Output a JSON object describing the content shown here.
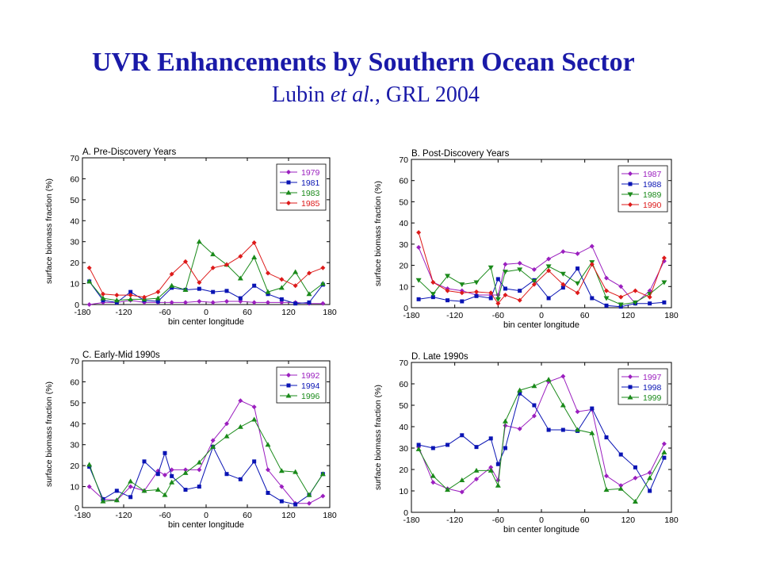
{
  "title": {
    "main": "UVR Enhancements by Southern Ocean Sector",
    "author": "Lubin",
    "etal": "et al.",
    "citation": ", GRL 2004"
  },
  "colors": {
    "purple": "#9b1fbf",
    "blue": "#0a14b4",
    "green": "#1a8a1a",
    "red": "#dd1a1a"
  },
  "chart_data": [
    {
      "type": "line",
      "title": "A. Pre-Discovery Years",
      "xlabel": "bin center longitude",
      "ylabel": "surface biomass fraction (%)",
      "xlim": [
        -180,
        180
      ],
      "ylim": [
        0,
        70
      ],
      "xticks": [
        -180,
        -120,
        -60,
        0,
        60,
        120,
        180
      ],
      "yticks": [
        0,
        10,
        20,
        30,
        40,
        50,
        60,
        70
      ],
      "legend": "top-right",
      "x": [
        -170,
        -150,
        -130,
        -110,
        -90,
        -70,
        -50,
        -30,
        -10,
        10,
        30,
        50,
        70,
        90,
        110,
        130,
        150,
        170
      ],
      "series": [
        {
          "name": "1979",
          "color": "#9b1fbf",
          "marker": "diamond",
          "values": [
            0,
            1,
            1,
            2,
            1,
            1,
            1,
            1,
            1.5,
            1,
            1.5,
            1.5,
            1,
            1,
            1,
            1,
            0.5,
            0.5
          ]
        },
        {
          "name": "1981",
          "color": "#0a14b4",
          "marker": "square",
          "values": [
            11,
            2,
            1,
            6,
            2,
            1.5,
            8,
            7,
            7.5,
            6,
            6.5,
            3,
            9,
            5,
            2.5,
            0.5,
            1,
            9.5
          ]
        },
        {
          "name": "1983",
          "color": "#1a8a1a",
          "marker": "triangle-up",
          "values": [
            11,
            3,
            2,
            2.5,
            2.5,
            3,
            9,
            7,
            30,
            24,
            19,
            12.5,
            22.5,
            6,
            8,
            15.5,
            5,
            10
          ]
        },
        {
          "name": "1985",
          "color": "#dd1a1a",
          "marker": "diamond",
          "values": [
            17.5,
            5,
            4.5,
            4.5,
            3.5,
            6,
            14.5,
            20.5,
            10.5,
            17.5,
            19,
            23,
            29.5,
            15,
            12,
            9,
            15,
            17.5
          ]
        }
      ]
    },
    {
      "type": "line",
      "title": "B. Post-Discovery Years",
      "xlabel": "bin center longitude",
      "ylabel": "surface biomass fraction (%)",
      "xlim": [
        -180,
        180
      ],
      "ylim": [
        0,
        70
      ],
      "xticks": [
        -180,
        -120,
        -60,
        0,
        60,
        120,
        180
      ],
      "yticks": [
        0,
        10,
        20,
        30,
        40,
        50,
        60,
        70
      ],
      "legend": "top-right",
      "x": [
        -170,
        -150,
        -130,
        -110,
        -90,
        -70,
        -60,
        -50,
        -30,
        -10,
        10,
        30,
        50,
        70,
        90,
        110,
        130,
        150,
        170
      ],
      "series": [
        {
          "name": "1987",
          "color": "#9b1fbf",
          "marker": "diamond",
          "values": [
            28.5,
            12,
            9,
            8,
            6,
            6,
            6,
            20.5,
            21,
            18,
            23,
            26.5,
            25.5,
            29,
            14,
            10,
            2,
            8,
            22
          ]
        },
        {
          "name": "1988",
          "color": "#0a14b4",
          "marker": "square",
          "values": [
            4,
            5,
            3.5,
            3,
            5.5,
            4.5,
            13.5,
            9,
            8,
            13,
            4.5,
            9.5,
            18.5,
            4.5,
            1,
            0.5,
            2,
            2,
            2.5
          ]
        },
        {
          "name": "1989",
          "color": "#1a8a1a",
          "marker": "triangle-down",
          "values": [
            13,
            6.5,
            15,
            11,
            12,
            19,
            4,
            17,
            18,
            12.5,
            19.5,
            16,
            11.5,
            21.5,
            4.5,
            1.5,
            2.5,
            6.5,
            12
          ]
        },
        {
          "name": "1990",
          "color": "#dd1a1a",
          "marker": "diamond",
          "values": [
            35.5,
            12,
            8,
            7,
            7.5,
            7,
            2,
            6,
            3.5,
            11,
            17.5,
            11,
            7,
            20.5,
            8,
            5,
            8,
            5,
            23.5
          ]
        }
      ]
    },
    {
      "type": "line",
      "title": "C. Early-Mid 1990s",
      "xlabel": "bin center longitude",
      "ylabel": "surface biomass fraction (%)",
      "xlim": [
        -180,
        180
      ],
      "ylim": [
        0,
        70
      ],
      "xticks": [
        -180,
        -120,
        -60,
        0,
        60,
        120,
        180
      ],
      "yticks": [
        0,
        10,
        20,
        30,
        40,
        50,
        60,
        70
      ],
      "legend": "top-right",
      "x": [
        -170,
        -150,
        -130,
        -110,
        -90,
        -70,
        -60,
        -50,
        -30,
        -10,
        10,
        30,
        50,
        70,
        90,
        110,
        130,
        150,
        170
      ],
      "series": [
        {
          "name": "1992",
          "color": "#9b1fbf",
          "marker": "diamond",
          "values": [
            10,
            4,
            3.5,
            10,
            8,
            17.5,
            15.5,
            18,
            18,
            18,
            32,
            40,
            51,
            48,
            18,
            10,
            2,
            2,
            5.5
          ]
        },
        {
          "name": "1994",
          "color": "#0a14b4",
          "marker": "square",
          "values": [
            19.5,
            4,
            8,
            5,
            22,
            16,
            26,
            15,
            8.5,
            10,
            29,
            16,
            13.5,
            22,
            7,
            3,
            1.5,
            6,
            16
          ]
        },
        {
          "name": "1996",
          "color": "#1a8a1a",
          "marker": "triangle-up",
          "values": [
            20.5,
            3,
            3.5,
            12.5,
            8,
            8.5,
            6,
            12,
            16.5,
            21.5,
            29,
            34,
            38.5,
            42,
            30,
            17.5,
            17,
            6,
            16
          ]
        }
      ]
    },
    {
      "type": "line",
      "title": "D. Late 1990s",
      "xlabel": "bin center longitude",
      "ylabel": "surface biomass fraction (%)",
      "xlim": [
        -180,
        180
      ],
      "ylim": [
        0,
        70
      ],
      "xticks": [
        -180,
        -120,
        -60,
        0,
        60,
        120,
        180
      ],
      "yticks": [
        0,
        10,
        20,
        30,
        40,
        50,
        60,
        70
      ],
      "legend": "top-right",
      "x": [
        -170,
        -150,
        -130,
        -110,
        -90,
        -70,
        -60,
        -50,
        -30,
        -10,
        10,
        30,
        50,
        70,
        90,
        110,
        130,
        150,
        170
      ],
      "series": [
        {
          "name": "1997",
          "color": "#9b1fbf",
          "marker": "diamond",
          "values": [
            30.5,
            14,
            11,
            9.5,
            15.5,
            21,
            15,
            40.5,
            39,
            45,
            61,
            63.5,
            47,
            48,
            17,
            12.5,
            16,
            18.5,
            32
          ]
        },
        {
          "name": "1998",
          "color": "#0a14b4",
          "marker": "square",
          "values": [
            31.5,
            30,
            31.5,
            36,
            30.5,
            34.5,
            22.5,
            30,
            55.5,
            50,
            38.5,
            38.5,
            38,
            48.5,
            35,
            27,
            21,
            10,
            25.5
          ]
        },
        {
          "name": "1999",
          "color": "#1a8a1a",
          "marker": "triangle-up",
          "values": [
            29.5,
            17,
            10.5,
            15,
            19.5,
            19.5,
            12.5,
            42.5,
            57,
            59,
            62,
            50,
            38.5,
            37,
            10.5,
            11,
            5,
            16,
            28
          ]
        }
      ]
    }
  ]
}
